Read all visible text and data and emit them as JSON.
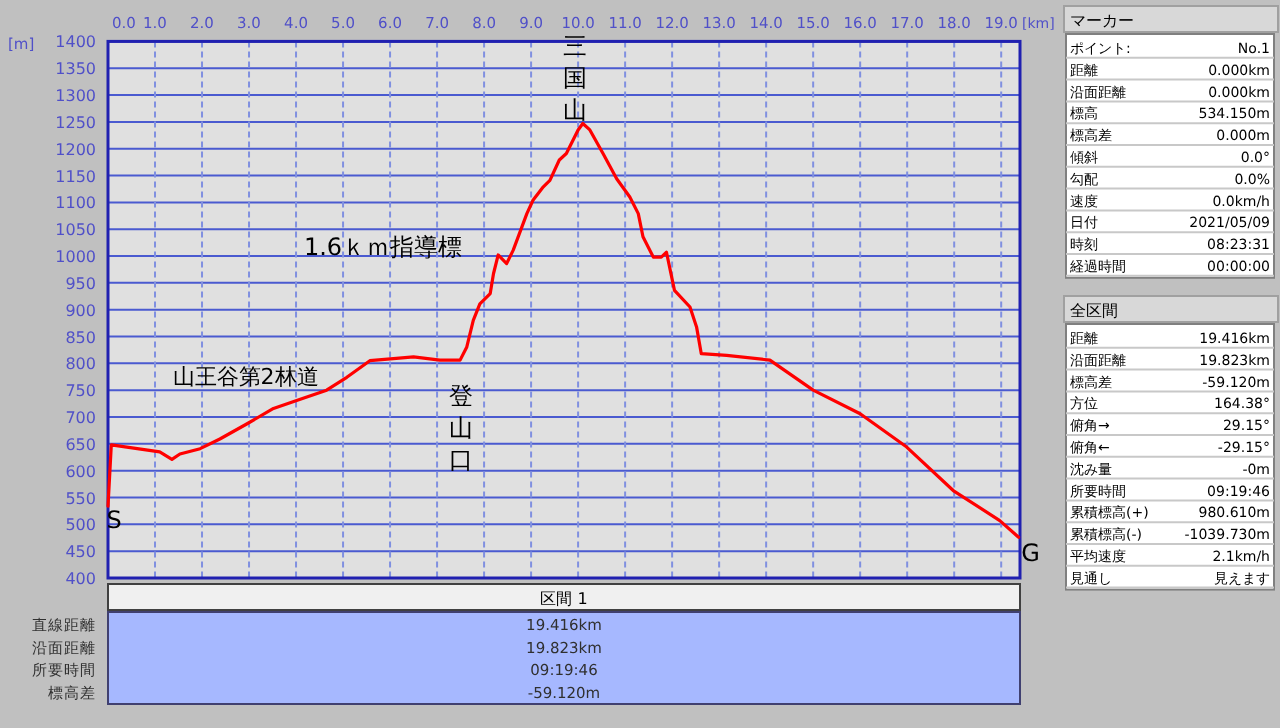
{
  "chart_data": {
    "type": "line",
    "xlabel": "[km]",
    "ylabel": "[m]",
    "color": "#ff0000",
    "grid": true,
    "x": [
      0,
      0.07,
      1.1,
      1.36,
      1.53,
      1.96,
      2.38,
      2.95,
      3.52,
      4.09,
      4.65,
      5.08,
      5.57,
      6.07,
      6.5,
      7.06,
      7.49,
      7.63,
      7.77,
      7.91,
      8.13,
      8.2,
      8.3,
      8.48,
      8.62,
      8.91,
      9.04,
      9.26,
      9.4,
      9.6,
      9.75,
      10.0,
      10.1,
      10.25,
      10.53,
      10.82,
      11.1,
      11.28,
      11.38,
      11.6,
      11.77,
      11.88,
      12.05,
      12.38,
      12.52,
      12.62,
      13.16,
      14.08,
      15.0,
      16.0,
      16.99,
      17.98,
      18.97,
      19.37
    ],
    "values": [
      534,
      648,
      635,
      621,
      631,
      641,
      659,
      687,
      716,
      733,
      750,
      774,
      805,
      809,
      812,
      806,
      806,
      830,
      880,
      911,
      930,
      967,
      1002,
      986,
      1011,
      1079,
      1104,
      1129,
      1141,
      1179,
      1191,
      1235,
      1247,
      1235,
      1191,
      1144,
      1110,
      1079,
      1036,
      998,
      998,
      1007,
      936,
      905,
      868,
      818,
      815,
      806,
      750,
      706,
      644,
      563,
      507,
      476
    ],
    "xlim": [
      0,
      19.4
    ],
    "ylim": [
      400,
      1400
    ],
    "xticks": [
      {
        "value": 0,
        "label": "0.0"
      },
      {
        "value": 1,
        "label": "1.0"
      },
      {
        "value": 2,
        "label": "2.0"
      },
      {
        "value": 3,
        "label": "3.0"
      },
      {
        "value": 4,
        "label": "4.0"
      },
      {
        "value": 5,
        "label": "5.0"
      },
      {
        "value": 6,
        "label": "6.0"
      },
      {
        "value": 7,
        "label": "7.0"
      },
      {
        "value": 8,
        "label": "8.0"
      },
      {
        "value": 9,
        "label": "9.0"
      },
      {
        "value": 10,
        "label": "10.0"
      },
      {
        "value": 11,
        "label": "11.0"
      },
      {
        "value": 12,
        "label": "12.0"
      },
      {
        "value": 13,
        "label": "13.0"
      },
      {
        "value": 14,
        "label": "14.0"
      },
      {
        "value": 15,
        "label": "15.0"
      },
      {
        "value": 16,
        "label": "16.0"
      },
      {
        "value": 17,
        "label": "17.0"
      },
      {
        "value": 18,
        "label": "18.0"
      },
      {
        "value": 19,
        "label": "19.0"
      }
    ],
    "yticks": [
      400,
      450,
      500,
      550,
      600,
      650,
      700,
      750,
      800,
      850,
      900,
      950,
      1000,
      1050,
      1100,
      1150,
      1200,
      1250,
      1300,
      1350,
      1400
    ],
    "annotations": [
      {
        "text": "S",
        "x": 0,
        "y": 534
      },
      {
        "text": "G",
        "x": 19.37,
        "y": 476
      },
      {
        "text": "登山口",
        "x": 7.5,
        "y": 806
      },
      {
        "text": "三国山",
        "x": 10.1,
        "y": 1247
      },
      {
        "text": "1.6ｋｍ指導標",
        "x": 8.3,
        "y": 1002
      },
      {
        "text": "山王谷第2林道",
        "x": 4.65,
        "y": 750
      },
      "マーカー",
      "ポイント:",
      "No.1",
      "距離",
      "0.000km",
      "沿面距離",
      "0.000km",
      "標高",
      "534.150m",
      "標高差",
      "0.000m",
      "傾斜",
      "0.0°",
      "勾配",
      "0.0%",
      "速度",
      "0.0km/h",
      "日付",
      "2021/05/09",
      "時刻",
      "08:23:31",
      "経過時間",
      "00:00:00",
      "全区間",
      "距離",
      "19.416km",
      "沿面距離",
      "19.823km",
      "標高差",
      "-59.120m",
      "方位",
      "164.38°",
      "俯角→",
      "29.15°",
      "俯角←",
      "-29.15°",
      "沈み量",
      "-0m",
      "所要時間",
      "09:19:46",
      "累積標高(+)",
      "980.610m",
      "累積標高(-)",
      "-1039.730m",
      "平均速度",
      "2.1km/h",
      "見通し",
      "見えます",
      "区間 1",
      "直線距離",
      "19.416km",
      "沿面距離",
      "19.823km",
      "所要時間",
      "09:19:46",
      "標高差",
      "-59.120m"
    ]
  }
}
